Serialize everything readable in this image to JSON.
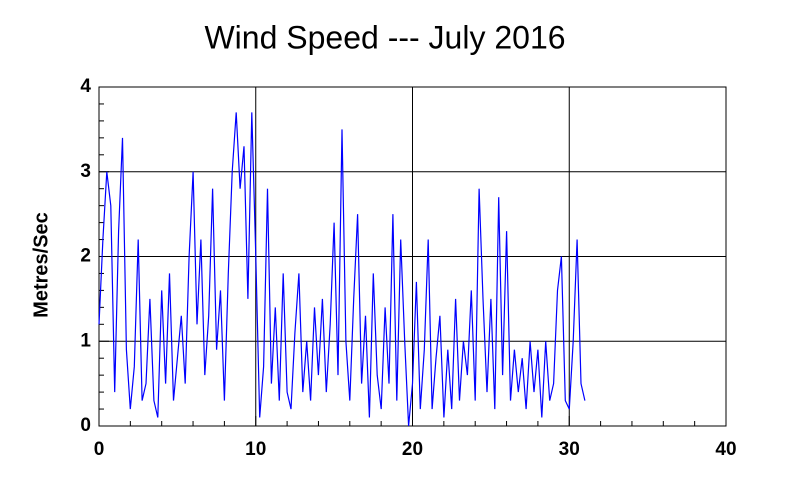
{
  "chart_data": {
    "type": "line",
    "title": "Wind Speed --- July 2016",
    "ylabel": "Metres/Sec",
    "x": [
      0,
      0.25,
      0.5,
      0.75,
      1,
      1.25,
      1.5,
      1.75,
      2,
      2.25,
      2.5,
      2.75,
      3,
      3.25,
      3.5,
      3.75,
      4,
      4.25,
      4.5,
      4.75,
      5,
      5.25,
      5.5,
      5.75,
      6,
      6.25,
      6.5,
      6.75,
      7,
      7.25,
      7.5,
      7.75,
      8,
      8.25,
      8.5,
      8.75,
      9,
      9.25,
      9.5,
      9.75,
      10,
      10.25,
      10.5,
      10.75,
      11,
      11.25,
      11.5,
      11.75,
      12,
      12.25,
      12.5,
      12.75,
      13,
      13.25,
      13.5,
      13.75,
      14,
      14.25,
      14.5,
      14.75,
      15,
      15.25,
      15.5,
      15.75,
      16,
      16.25,
      16.5,
      16.75,
      17,
      17.25,
      17.5,
      17.75,
      18,
      18.25,
      18.5,
      18.75,
      19,
      19.25,
      19.5,
      19.75,
      20,
      20.25,
      20.5,
      20.75,
      21,
      21.25,
      21.5,
      21.75,
      22,
      22.25,
      22.5,
      22.75,
      23,
      23.25,
      23.5,
      23.75,
      24,
      24.25,
      24.5,
      24.75,
      25,
      25.25,
      25.5,
      25.75,
      26,
      26.25,
      26.5,
      26.75,
      27,
      27.25,
      27.5,
      27.75,
      28,
      28.25,
      28.5,
      28.75,
      29,
      29.25,
      29.5,
      29.75,
      30,
      30.25,
      30.5,
      30.75,
      31
    ],
    "series": [
      {
        "name": "Wind Speed",
        "color": "#0000ff",
        "values": [
          1.2,
          2.2,
          3.0,
          2.6,
          0.4,
          2.3,
          3.4,
          0.9,
          0.2,
          0.7,
          2.2,
          0.3,
          0.5,
          1.5,
          0.3,
          0.1,
          1.6,
          0.5,
          1.8,
          0.3,
          0.8,
          1.3,
          0.5,
          2.0,
          3.0,
          1.2,
          2.2,
          0.6,
          1.3,
          2.8,
          0.9,
          1.6,
          0.3,
          1.8,
          3.0,
          3.7,
          2.8,
          3.3,
          1.5,
          3.7,
          2.0,
          0.1,
          0.7,
          2.8,
          0.5,
          1.4,
          0.3,
          1.8,
          0.4,
          0.2,
          1.1,
          1.8,
          0.4,
          1.0,
          0.3,
          1.4,
          0.6,
          1.5,
          0.4,
          1.2,
          2.4,
          0.6,
          3.5,
          1.0,
          0.3,
          1.5,
          2.5,
          0.5,
          1.3,
          0.1,
          1.8,
          0.6,
          0.2,
          1.4,
          0.5,
          2.5,
          0.3,
          2.2,
          1.0,
          0.0,
          0.5,
          1.7,
          0.2,
          0.9,
          2.2,
          0.2,
          0.8,
          1.3,
          0.1,
          0.9,
          0.2,
          1.5,
          0.3,
          1.0,
          0.6,
          1.6,
          0.3,
          2.8,
          1.5,
          0.4,
          1.5,
          0.2,
          2.7,
          0.6,
          2.3,
          0.3,
          0.9,
          0.4,
          0.8,
          0.2,
          1.0,
          0.4,
          0.9,
          0.1,
          1.0,
          0.3,
          0.5,
          1.6,
          2.0,
          0.3,
          0.2,
          1.0,
          2.2,
          0.5,
          0.3
        ]
      }
    ],
    "xlim": [
      0,
      40
    ],
    "xticks": [
      0,
      10,
      20,
      30,
      40
    ],
    "xminorticks": [
      2,
      4,
      6,
      8,
      12,
      14,
      16,
      18,
      22,
      24,
      26,
      28,
      32,
      34,
      36,
      38
    ],
    "ylim": [
      0,
      4
    ],
    "yticks": [
      0,
      1,
      2,
      3,
      4
    ],
    "yminorticks": [
      0.2,
      0.4,
      0.6,
      0.8,
      1.2,
      1.4,
      1.6,
      1.8,
      2.2,
      2.4,
      2.6,
      2.8,
      3.2,
      3.4,
      3.6,
      3.8
    ],
    "grid": true
  }
}
